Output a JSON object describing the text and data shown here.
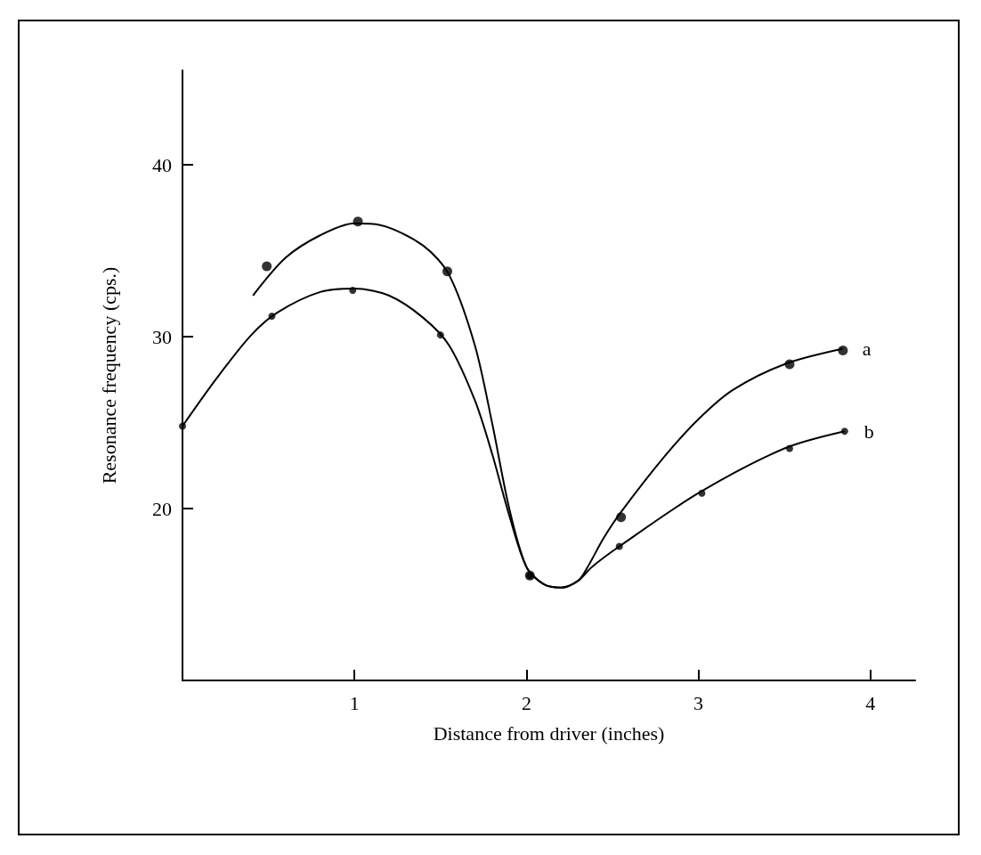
{
  "chart_data": {
    "type": "line",
    "xlabel": "Distance from driver (inches)",
    "ylabel": "Resonance frequency (cps.)",
    "xlim": [
      0,
      4.26
    ],
    "ylim": [
      10,
      45.5
    ],
    "xticks": [
      1,
      2,
      3,
      4
    ],
    "yticks": [
      20,
      30,
      40
    ],
    "grid": false,
    "legend": false,
    "line_style": "solid",
    "series": [
      {
        "name": "a",
        "marker": "none",
        "color": "#000000",
        "x": [
          0.41,
          0.6,
          0.8,
          1.0,
          1.15,
          1.4,
          1.55,
          1.7,
          1.8,
          1.9,
          2.0,
          2.1,
          2.2,
          2.3,
          2.35,
          2.45,
          2.55,
          2.8,
          3.0,
          3.2,
          3.5,
          3.84
        ],
        "values": [
          32.4,
          34.6,
          35.9,
          36.6,
          36.5,
          35.3,
          33.6,
          29.5,
          25,
          20,
          16.6,
          15.6,
          15.4,
          15.8,
          16.5,
          18.3,
          19.8,
          23,
          25.2,
          26.9,
          28.4,
          29.3
        ]
      },
      {
        "name": "b",
        "marker": "none",
        "color": "#000000",
        "x": [
          0,
          0.2,
          0.4,
          0.55,
          0.8,
          1.0,
          1.2,
          1.4,
          1.55,
          1.7,
          1.8,
          1.9,
          2.0,
          2.1,
          2.2,
          2.3,
          2.38,
          2.54,
          3.0,
          3.5,
          3.85
        ],
        "values": [
          24.8,
          27.6,
          30.1,
          31.4,
          32.6,
          32.8,
          32.4,
          31.1,
          29.5,
          26.3,
          23.2,
          19.6,
          16.6,
          15.6,
          15.4,
          15.8,
          16.6,
          17.8,
          20.9,
          23.5,
          24.5
        ]
      },
      {
        "type": "scatter",
        "marker": "circle",
        "color": "#000000",
        "x": [
          0.49,
          1.02,
          1.54,
          2.02,
          2.55,
          3.53,
          3.84
        ],
        "values": [
          34.1,
          36.7,
          33.8,
          16.1,
          19.5,
          28.4,
          29.2
        ]
      },
      {
        "type": "scatter",
        "marker": "circle",
        "color": "#000000",
        "x": [
          0,
          0.52,
          0.99,
          1.5,
          2.02,
          2.54,
          3.02,
          3.53,
          3.85
        ],
        "values": [
          24.8,
          31.2,
          32.7,
          30.1,
          16.1,
          17.8,
          20.9,
          23.5,
          24.5
        ]
      }
    ]
  }
}
